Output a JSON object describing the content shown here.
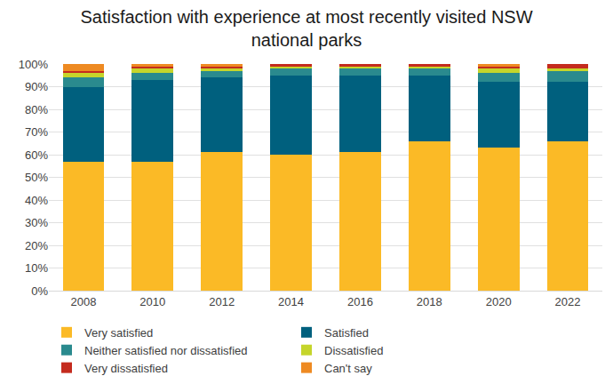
{
  "chart_data": {
    "type": "bar",
    "title": "Satisfaction with experience at most recently visited NSW\nnational parks",
    "categories": [
      "2008",
      "2010",
      "2012",
      "2014",
      "2016",
      "2018",
      "2020",
      "2022"
    ],
    "series": [
      {
        "name": "Very satisfied",
        "color": "#fbba26",
        "values": [
          57,
          57,
          61,
          60,
          61,
          66,
          63,
          66
        ]
      },
      {
        "name": "Satisfied",
        "color": "#00607e",
        "values": [
          33,
          36,
          33,
          35,
          34,
          29,
          29,
          26
        ]
      },
      {
        "name": "Neither satisfied nor dissatisfied",
        "color": "#2a8a8e",
        "values": [
          4,
          3,
          3,
          3,
          3,
          3,
          4,
          5
        ]
      },
      {
        "name": "Dissatisfied",
        "color": "#c5d52b",
        "values": [
          2,
          2,
          1,
          1,
          1,
          1,
          2,
          1
        ]
      },
      {
        "name": "Very dissatisfied",
        "color": "#c42b1e",
        "values": [
          1,
          1,
          1,
          1,
          1,
          1,
          1,
          2
        ]
      },
      {
        "name": "Can't say",
        "color": "#ee8a22",
        "values": [
          3,
          1,
          1,
          0,
          0,
          0,
          1,
          0
        ]
      }
    ],
    "ylim": [
      0,
      100
    ],
    "yticks": [
      {
        "value": 0,
        "label": "0%"
      },
      {
        "value": 10,
        "label": "10%"
      },
      {
        "value": 20,
        "label": "20%"
      },
      {
        "value": 30,
        "label": "30%"
      },
      {
        "value": 40,
        "label": "40%"
      },
      {
        "value": 50,
        "label": "50%"
      },
      {
        "value": 60,
        "label": "60%"
      },
      {
        "value": 70,
        "label": "70%"
      },
      {
        "value": 80,
        "label": "80%"
      },
      {
        "value": 90,
        "label": "90%"
      },
      {
        "value": 100,
        "label": "100%"
      }
    ],
    "stacked": true,
    "grid": true,
    "legend": "bottom",
    "data_labels": false
  }
}
